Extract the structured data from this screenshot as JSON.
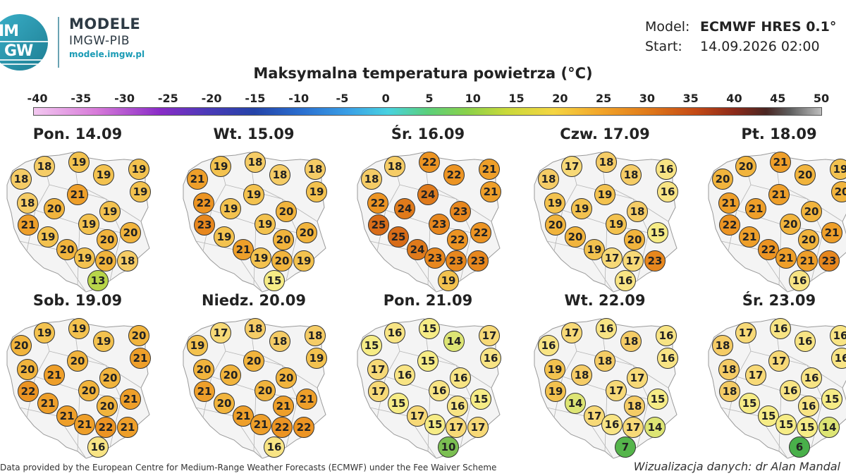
{
  "brand": {
    "title": "MODELE",
    "subtitle": "IMGW-PIB",
    "url": "modele.imgw.pl",
    "logo_text_top": "IM",
    "logo_text_bottom": "GW"
  },
  "model_info": {
    "model_label": "Model:",
    "model_value": "ECMWF HRES 0.1°",
    "start_label": "Start:",
    "start_value": "14.09.2026 02:00"
  },
  "title": "Maksymalna temperatura powietrza (°C)",
  "scale": {
    "ticks": [
      "-40",
      "-35",
      "-30",
      "-25",
      "-20",
      "-15",
      "-10",
      "-5",
      "0",
      "5",
      "10",
      "15",
      "20",
      "25",
      "30",
      "35",
      "40",
      "45",
      "50"
    ]
  },
  "panels": [
    {
      "day": "Pon. 14.09",
      "temps": [
        18,
        19,
        18,
        19,
        19,
        21,
        19,
        18,
        20,
        19,
        21,
        19,
        20,
        19,
        20,
        20,
        19,
        20,
        18,
        13
      ]
    },
    {
      "day": "Wt. 15.09",
      "temps": [
        19,
        18,
        21,
        18,
        18,
        19,
        19,
        22,
        19,
        20,
        23,
        19,
        20,
        19,
        20,
        21,
        19,
        20,
        19,
        15
      ]
    },
    {
      "day": "Śr. 16.09",
      "temps": [
        18,
        22,
        18,
        22,
        21,
        24,
        21,
        22,
        24,
        23,
        25,
        23,
        22,
        25,
        22,
        24,
        23,
        23,
        23,
        19
      ]
    },
    {
      "day": "Czw. 17.09",
      "temps": [
        17,
        18,
        18,
        18,
        16,
        19,
        16,
        19,
        19,
        18,
        20,
        19,
        15,
        20,
        20,
        19,
        17,
        17,
        23,
        16
      ]
    },
    {
      "day": "Pt. 18.09",
      "temps": [
        20,
        21,
        20,
        20,
        19,
        21,
        20,
        21,
        21,
        20,
        22,
        20,
        21,
        21,
        20,
        22,
        21,
        21,
        23,
        16
      ]
    },
    {
      "day": "Sob. 19.09",
      "temps": [
        19,
        19,
        20,
        19,
        20,
        20,
        21,
        20,
        21,
        20,
        22,
        20,
        21,
        21,
        20,
        21,
        21,
        22,
        21,
        16
      ]
    },
    {
      "day": "Niedz. 20.09",
      "temps": [
        17,
        18,
        19,
        18,
        18,
        20,
        19,
        20,
        20,
        20,
        21,
        20,
        21,
        20,
        21,
        21,
        21,
        22,
        22,
        16
      ]
    },
    {
      "day": "Pon. 21.09",
      "temps": [
        16,
        15,
        15,
        14,
        17,
        15,
        16,
        17,
        16,
        16,
        17,
        16,
        15,
        15,
        16,
        17,
        15,
        17,
        17,
        10
      ]
    },
    {
      "day": "Wt. 22.09",
      "temps": [
        17,
        16,
        16,
        18,
        16,
        18,
        16,
        19,
        18,
        17,
        19,
        17,
        15,
        14,
        18,
        17,
        16,
        17,
        14,
        7
      ]
    },
    {
      "day": "Śr. 23.09",
      "temps": [
        17,
        16,
        18,
        16,
        16,
        17,
        16,
        18,
        17,
        16,
        18,
        16,
        15,
        15,
        16,
        15,
        15,
        15,
        14,
        6
      ]
    }
  ],
  "footer": {
    "left": "Data provided by the European Centre for Medium-Range Weather Forecasts (ECMWF) under the Fee Waiver Scheme",
    "right": "Wizualizacja danych: dr Alan Mandal"
  }
}
